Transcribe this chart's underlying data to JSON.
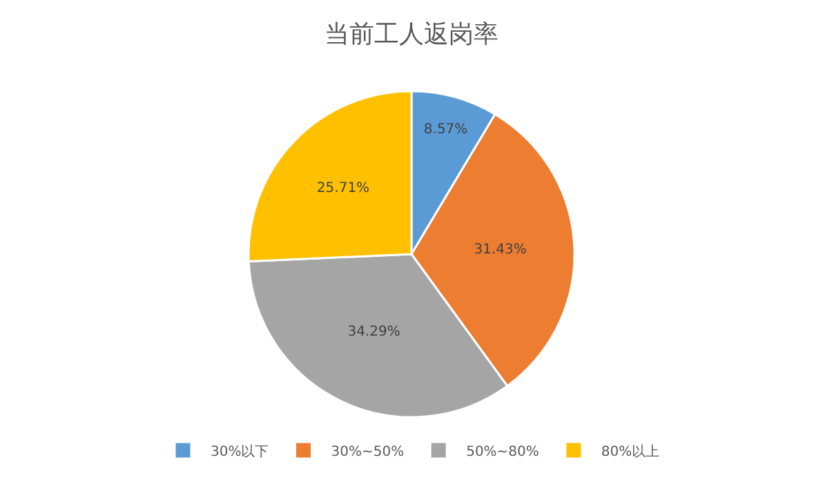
{
  "chart_data": {
    "type": "pie",
    "title": "当前工人返岗率",
    "categories": [
      "30%以下",
      "30%~50%",
      "50%~80%",
      "80%以上"
    ],
    "values": [
      8.57,
      31.43,
      34.29,
      25.71
    ],
    "colors": [
      "#5b9bd5",
      "#ed7d31",
      "#a5a5a5",
      "#ffc000"
    ],
    "value_labels": [
      "8.57%",
      "31.43%",
      "34.29%",
      "25.71%"
    ],
    "legend": "bottom"
  }
}
